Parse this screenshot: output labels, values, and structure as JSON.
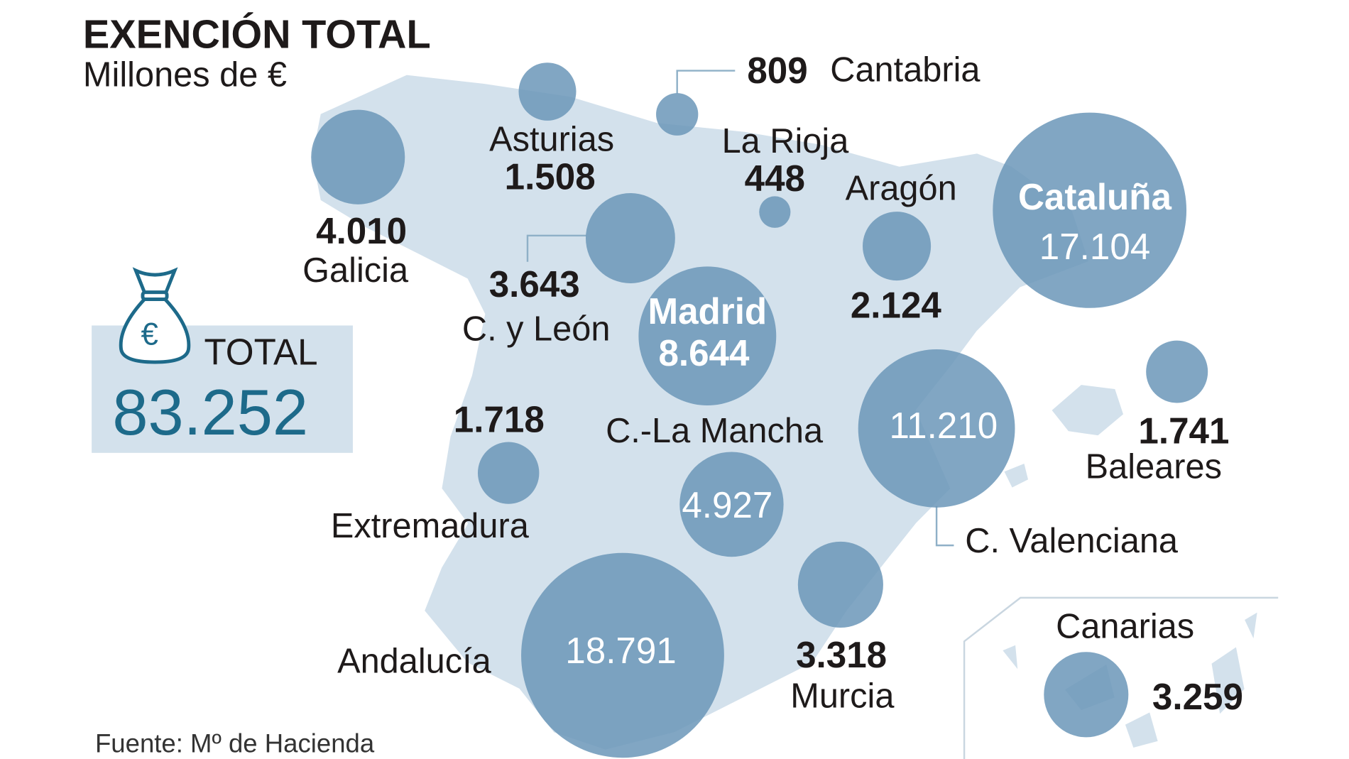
{
  "title": "EXENCIÓN TOTAL",
  "subtitle": "Millones de €",
  "total": {
    "label": "TOTAL",
    "value": "83.252",
    "icon": "money-bag-euro-icon"
  },
  "source": "Fuente: Mº de Hacienda",
  "colors": {
    "land": "#d3e1ec",
    "bubble": "#6b97b8",
    "total_value": "#1d6a8a",
    "text": "#1e1a1a"
  },
  "chart_data": {
    "type": "bubble-map",
    "unit": "Millones de €",
    "regions": [
      {
        "name": "Galicia",
        "value": 4010,
        "label": "4.010"
      },
      {
        "name": "Asturias",
        "value": 1508,
        "label": "1.508"
      },
      {
        "name": "Cantabria",
        "value": 809,
        "label": "809"
      },
      {
        "name": "La Rioja",
        "value": 448,
        "label": "448"
      },
      {
        "name": "C. y León",
        "value": 3643,
        "label": "3.643"
      },
      {
        "name": "Aragón",
        "value": 2124,
        "label": "2.124"
      },
      {
        "name": "Cataluña",
        "value": 17104,
        "label": "17.104"
      },
      {
        "name": "Madrid",
        "value": 8644,
        "label": "8.644"
      },
      {
        "name": "C. Valenciana",
        "value": 11210,
        "label": "11.210"
      },
      {
        "name": "Baleares",
        "value": 1741,
        "label": "1.741"
      },
      {
        "name": "Extremadura",
        "value": 1718,
        "label": "1.718"
      },
      {
        "name": "C.-La Mancha",
        "value": 4927,
        "label": "4.927"
      },
      {
        "name": "Murcia",
        "value": 3318,
        "label": "3.318"
      },
      {
        "name": "Andalucía",
        "value": 18791,
        "label": "18.791"
      },
      {
        "name": "Canarias",
        "value": 3259,
        "label": "3.259"
      }
    ]
  }
}
